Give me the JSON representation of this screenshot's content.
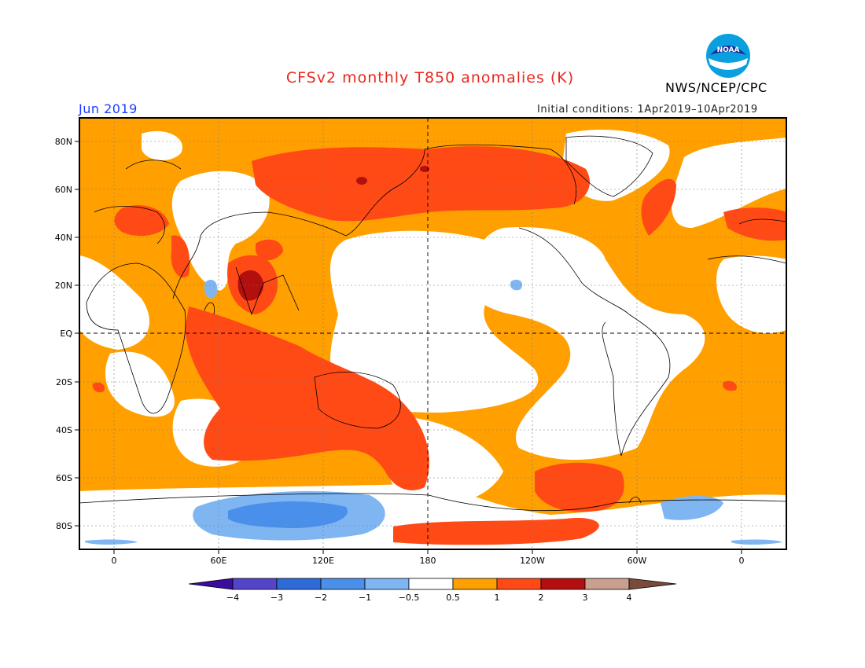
{
  "title": "CFSv2 monthly T850 anomalies (K)",
  "agency": "NWS/NCEP/CPC",
  "logo_text": "NOAA",
  "valid_period": "Jun 2019",
  "initial_conditions": "Initial conditions: 1Apr2019–10Apr2019",
  "map": {
    "lon_labels": [
      "0",
      "60E",
      "120E",
      "180",
      "120W",
      "60W",
      "0"
    ],
    "lat_labels": [
      "80N",
      "60N",
      "40N",
      "20N",
      "EQ",
      "20S",
      "40S",
      "60S",
      "80S"
    ]
  },
  "colorbar": {
    "labels": [
      "−4",
      "−3",
      "−2",
      "−1",
      "−0.5",
      "0.5",
      "1",
      "2",
      "3",
      "4"
    ],
    "colors": {
      "lt_neg4": "#3a0d9e",
      "neg4_neg3": "#5344c9",
      "neg3_neg2": "#2f6ad9",
      "neg2_neg1": "#4a90ea",
      "neg1_neg05": "#7fb6f2",
      "neutral": "#ffffff",
      "pos05_1": "#ffa000",
      "pos1_2": "#ff4a16",
      "pos2_3": "#b30f0f",
      "pos3_4": "#c9a090",
      "gt_4": "#7a4a3a"
    }
  }
}
